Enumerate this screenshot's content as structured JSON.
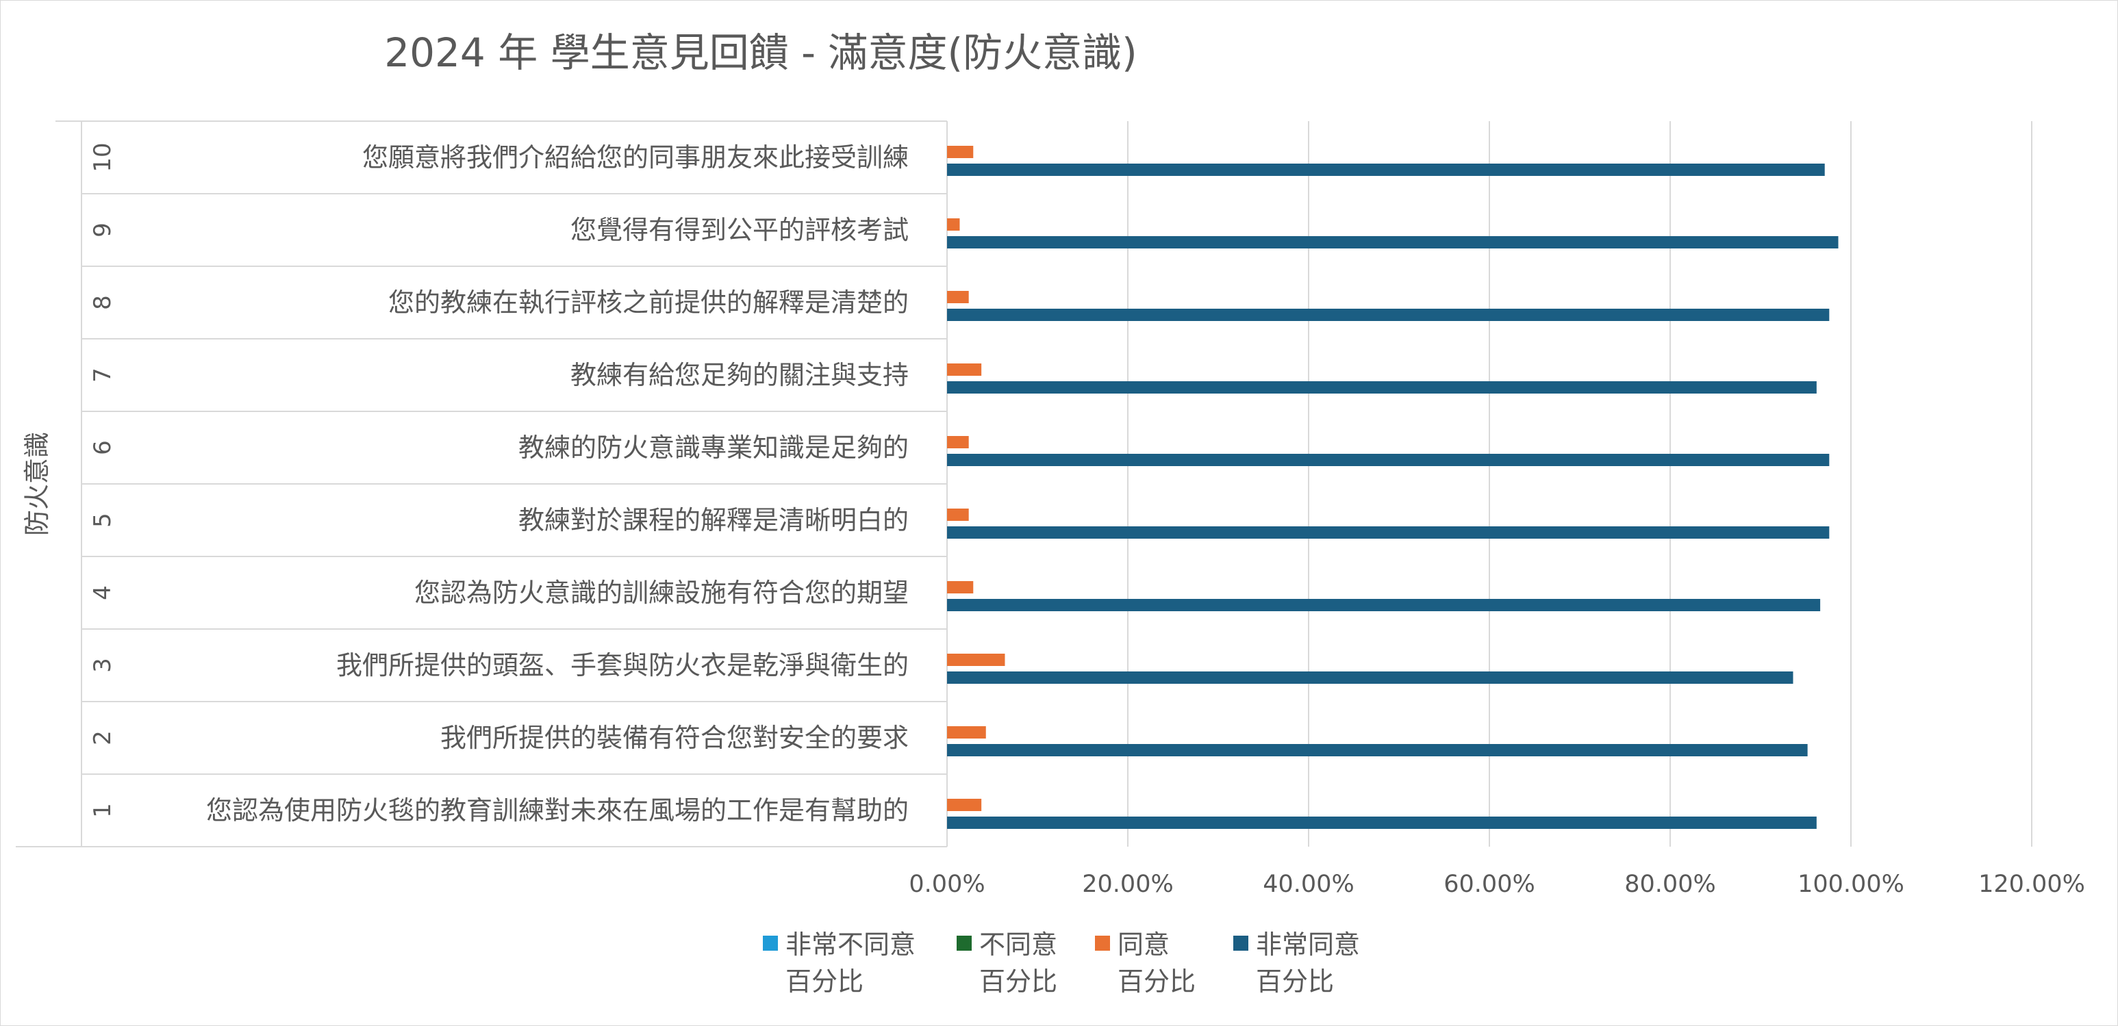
{
  "chart_data": {
    "type": "bar",
    "orientation": "horizontal",
    "title": "2024 年 學生意見回饋 - 滿意度(防火意識)",
    "group_label": "防火意識",
    "category_numbers": [
      "1",
      "2",
      "3",
      "4",
      "5",
      "6",
      "7",
      "8",
      "9",
      "10"
    ],
    "categories": [
      "您認為使用防火毯的教育訓練對未來在風場的工作是有幫助的",
      "我們所提供的裝備有符合您對安全的要求",
      "我們所提供的頭盔、手套與防火衣是乾淨與衛生的",
      "您認為防火意識的訓練設施有符合您的期望",
      "教練對於課程的解釋是清晰明白的",
      "教練的防火意識專業知識是足夠的",
      "教練有給您足夠的關注與支持",
      "您的教練在執行評核之前提供的解釋是清楚的",
      "您覺得有得到公平的評核考試",
      "您願意將我們介紹給您的同事朋友來此接受訓練"
    ],
    "series": [
      {
        "name": "非常不同意百分比",
        "legend_lines": [
          "非常不同意",
          "百分比"
        ],
        "color": "#1f9bd7",
        "values": [
          0,
          0,
          0,
          0,
          0,
          0,
          0,
          0,
          0,
          0
        ]
      },
      {
        "name": "不同意百分比",
        "legend_lines": [
          "不同意",
          "百分比"
        ],
        "color": "#1e6b2e",
        "values": [
          0,
          0.5,
          0,
          0.5,
          0,
          0,
          0,
          0,
          0,
          0
        ]
      },
      {
        "name": "同意百分比",
        "legend_lines": [
          "同意",
          "百分比"
        ],
        "color": "#e97132",
        "values": [
          3.8,
          4.3,
          6.4,
          2.9,
          2.4,
          2.4,
          3.8,
          2.4,
          1.4,
          2.9
        ]
      },
      {
        "name": "非常同意百分比",
        "legend_lines": [
          "非常同意",
          "百分比"
        ],
        "color": "#1b5e83",
        "values": [
          96.2,
          95.2,
          93.6,
          96.6,
          97.6,
          97.6,
          96.2,
          97.6,
          98.6,
          97.1
        ]
      }
    ],
    "x_ticks": [
      "0.00%",
      "20.00%",
      "40.00%",
      "60.00%",
      "80.00%",
      "100.00%",
      "120.00%"
    ],
    "xlim": [
      0,
      120
    ],
    "grid": true,
    "legend_position": "bottom"
  }
}
